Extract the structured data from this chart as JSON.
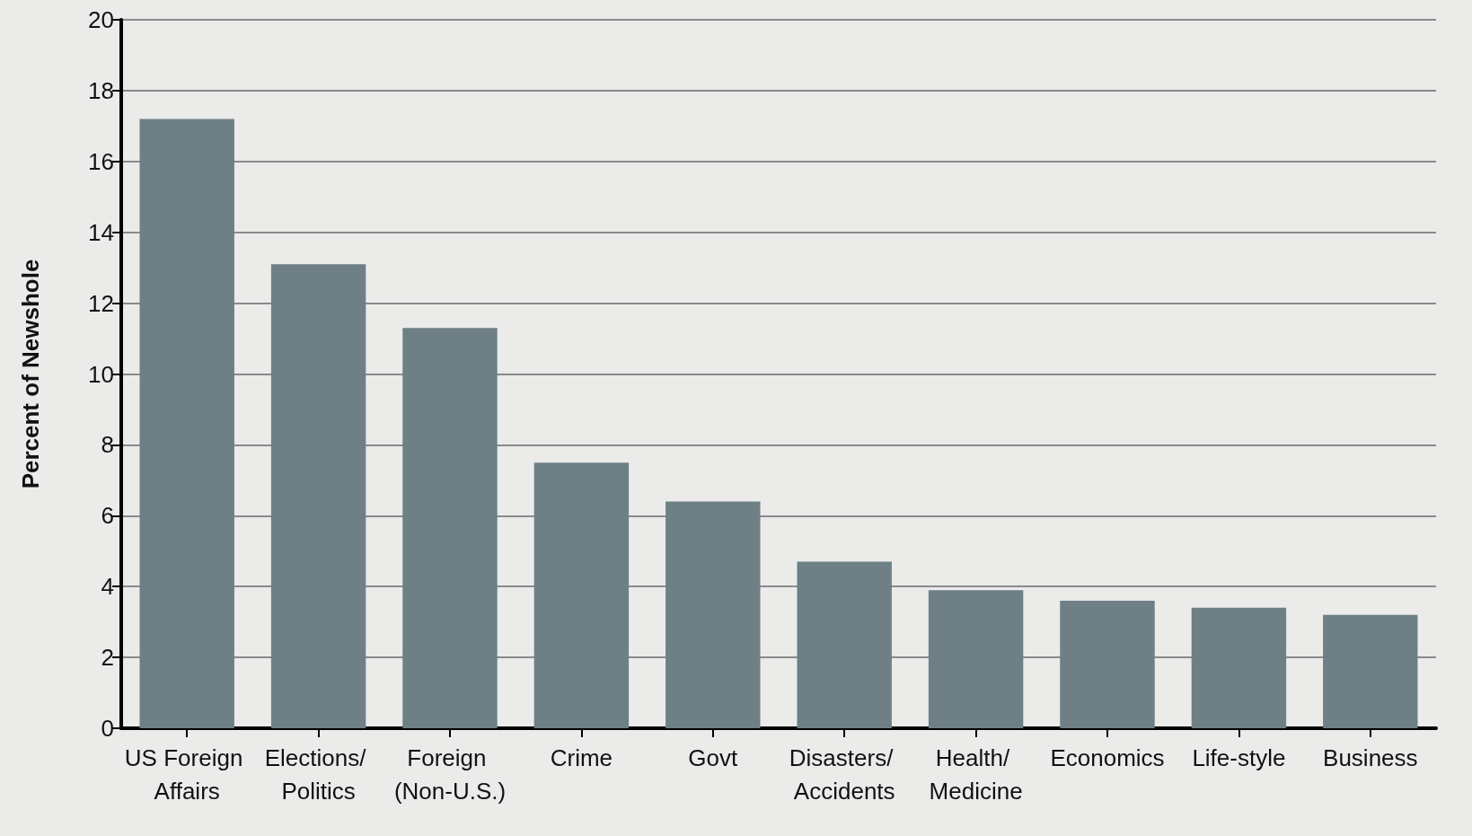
{
  "chart_data": {
    "type": "bar",
    "ylabel": "Percent of Newshole",
    "categories": [
      "US Foreign Affairs",
      "Elections/ Politics",
      "Foreign (Non-U.S.)",
      "Crime",
      "Govt",
      "Disasters/ Accidents",
      "Health/ Medicine",
      "Economics",
      "Life-style",
      "Business"
    ],
    "values": [
      17.2,
      13.1,
      11.3,
      7.5,
      6.4,
      4.7,
      3.9,
      3.6,
      3.4,
      3.2
    ],
    "color": "#6e7f86",
    "ylim": [
      0,
      20
    ],
    "yticks": [
      0,
      2,
      4,
      6,
      8,
      10,
      12,
      14,
      16,
      18,
      20
    ],
    "grid": "y"
  }
}
